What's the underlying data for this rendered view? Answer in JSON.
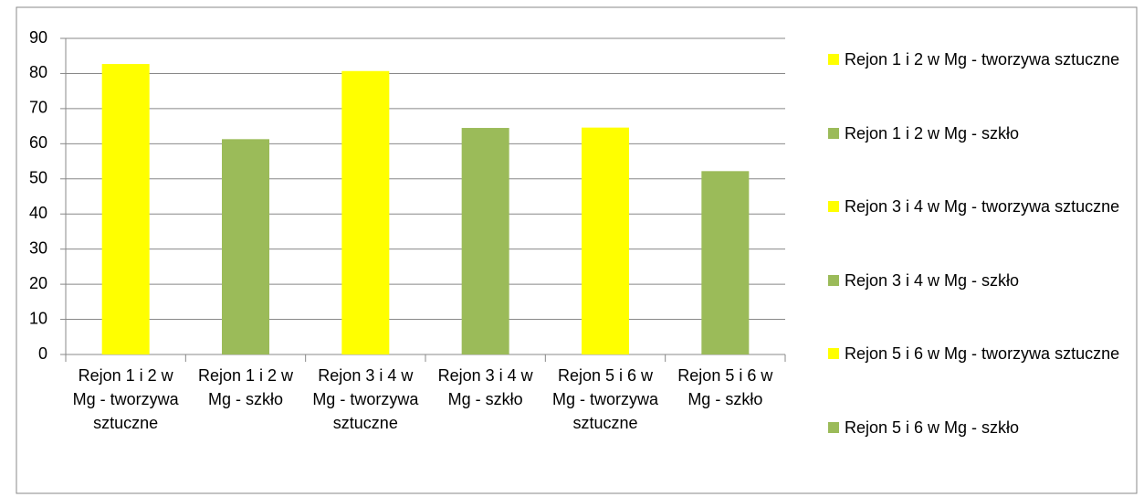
{
  "chart_data": {
    "type": "bar",
    "categories": [
      "Rejon 1 i 2 w Mg - tworzywa sztuczne",
      "Rejon 1 i 2 w Mg - szkło",
      "Rejon 3 i 4 w Mg - tworzywa sztuczne",
      "Rejon 3 i 4 w Mg - szkło",
      "Rejon 5 i 6 w Mg - tworzywa sztuczne",
      "Rejon 5 i 6 w Mg - szkło"
    ],
    "values": [
      82.7,
      61.3,
      80.7,
      64.5,
      64.6,
      52.2
    ],
    "colors": [
      "#ffff00",
      "#9bbb59",
      "#ffff00",
      "#9bbb59",
      "#ffff00",
      "#9bbb59"
    ],
    "ylim": [
      0,
      90
    ],
    "yticks": [
      0,
      10,
      20,
      30,
      40,
      50,
      60,
      70,
      80,
      90
    ],
    "grid": true,
    "legend": "right"
  }
}
